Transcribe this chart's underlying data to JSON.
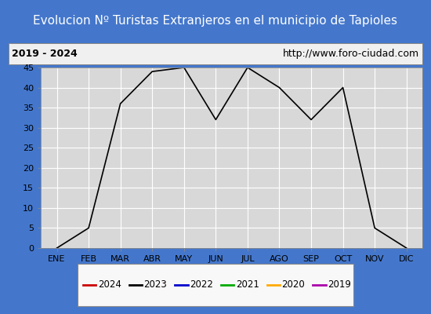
{
  "title": "Evolucion Nº Turistas Extranjeros en el municipio de Tapioles",
  "subtitle_left": "2019 - 2024",
  "subtitle_right": "http://www.foro-ciudad.com",
  "x_labels": [
    "ENE",
    "FEB",
    "MAR",
    "ABR",
    "MAY",
    "JUN",
    "JUL",
    "AGO",
    "SEP",
    "OCT",
    "NOV",
    "DIC"
  ],
  "ylim": [
    0,
    45
  ],
  "yticks": [
    0,
    5,
    10,
    15,
    20,
    25,
    30,
    35,
    40,
    45
  ],
  "series": {
    "2024": {
      "color": "#cc0000",
      "linewidth": 1.2,
      "data": [
        null,
        null,
        null,
        null,
        null,
        null,
        null,
        null,
        null,
        null,
        null,
        null
      ]
    },
    "2023": {
      "color": "#000000",
      "linewidth": 1.2,
      "data": [
        0,
        5,
        36,
        44,
        45,
        32,
        45,
        40,
        32,
        40,
        5,
        0
      ]
    },
    "2022": {
      "color": "#0000cc",
      "linewidth": 1.2,
      "data": [
        null,
        null,
        null,
        null,
        null,
        null,
        null,
        null,
        null,
        null,
        null,
        null
      ]
    },
    "2021": {
      "color": "#00aa00",
      "linewidth": 1.2,
      "data": [
        null,
        null,
        null,
        null,
        null,
        null,
        null,
        null,
        null,
        null,
        null,
        null
      ]
    },
    "2020": {
      "color": "#ffaa00",
      "linewidth": 1.2,
      "data": [
        null,
        null,
        null,
        null,
        null,
        null,
        null,
        null,
        null,
        null,
        null,
        null
      ]
    },
    "2019": {
      "color": "#aa00aa",
      "linewidth": 1.2,
      "data": [
        null,
        null,
        null,
        null,
        null,
        null,
        null,
        null,
        null,
        null,
        null,
        null
      ]
    }
  },
  "legend_order": [
    "2024",
    "2023",
    "2022",
    "2021",
    "2020",
    "2019"
  ],
  "title_bg_color": "#4477cc",
  "title_text_color": "#ffffff",
  "subtitle_bg_color": "#f0f0f0",
  "plot_bg_color": "#d8d8d8",
  "grid_color": "#ffffff",
  "outer_bg_color": "#4477cc",
  "title_fontsize": 11,
  "subtitle_fontsize": 9,
  "tick_fontsize": 8,
  "legend_fontsize": 8.5
}
